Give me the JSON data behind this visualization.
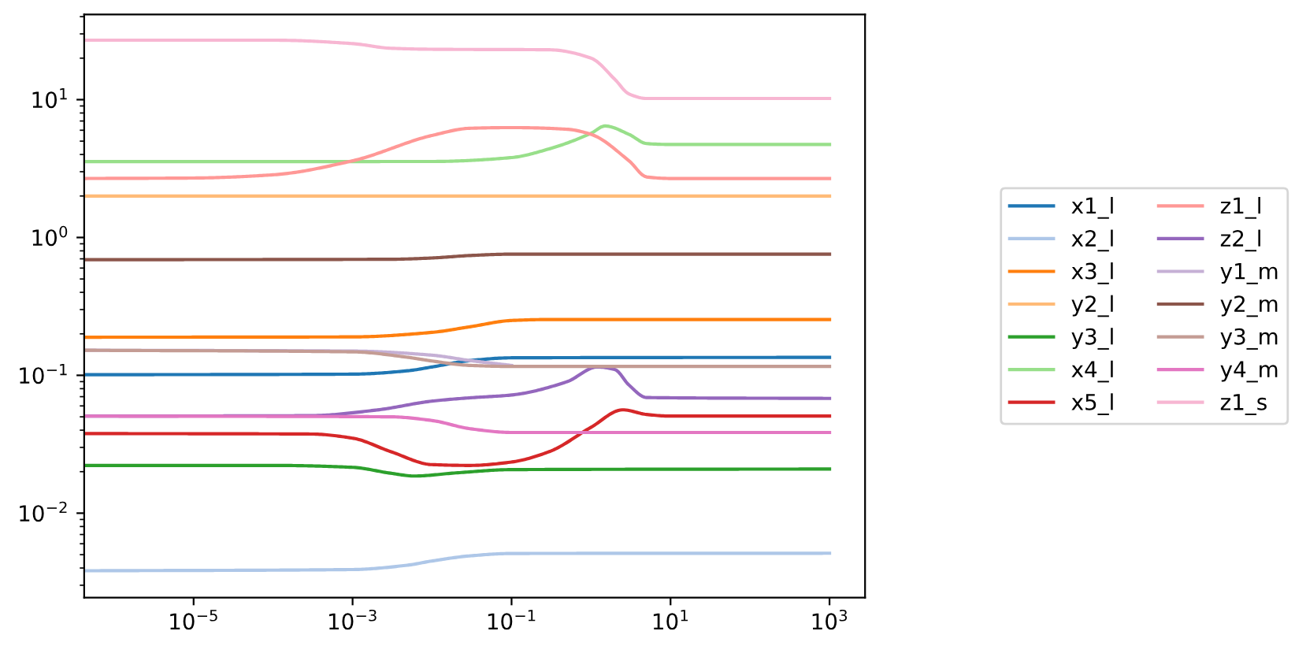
{
  "chart_data": {
    "type": "line",
    "log": "xy",
    "grid": false,
    "legend": "right",
    "marker": "none",
    "line_style": "solid",
    "xlim": [
      4.2e-07,
      2800
    ],
    "ylim": [
      0.00244,
      41.5
    ],
    "xticks": [
      {
        "value": 1e-05,
        "label": "10$^{−5}$"
      },
      {
        "value": 0.001,
        "label": "10$^{−3}$"
      },
      {
        "value": 0.1,
        "label": "10$^{−1}$"
      },
      {
        "value": 10,
        "label": "10$^{1}$"
      },
      {
        "value": 1000,
        "label": "10$^{3}$"
      }
    ],
    "yticks": [
      {
        "value": 0.01,
        "label": "10$^{−2}$"
      },
      {
        "value": 0.1,
        "label": "10$^{−1}$"
      },
      {
        "value": 1,
        "label": "10$^{0}$"
      },
      {
        "value": 10,
        "label": "10$^{1}$"
      }
    ],
    "series": [
      {
        "name": "x1_l",
        "color": "#1f77b4",
        "x": [
          4.2e-07,
          0.001,
          0.005,
          0.01,
          0.03,
          0.1,
          1000
        ],
        "values": [
          0.101,
          0.102,
          0.108,
          0.115,
          0.128,
          0.134,
          0.135
        ]
      },
      {
        "name": "x2_l",
        "color": "#aec7e8",
        "x": [
          4.2e-07,
          0.001,
          0.005,
          0.01,
          0.03,
          0.1,
          1000
        ],
        "values": [
          0.00382,
          0.0039,
          0.0042,
          0.0045,
          0.0049,
          0.0051,
          0.00512
        ]
      },
      {
        "name": "x3_l",
        "color": "#ff7f0e",
        "x": [
          4.2e-07,
          0.001,
          0.01,
          0.03,
          0.1,
          0.3,
          1000
        ],
        "values": [
          0.189,
          0.19,
          0.205,
          0.225,
          0.25,
          0.254,
          0.254
        ]
      },
      {
        "name": "y2_l",
        "color": "#ffbb78",
        "x": [
          4.2e-07,
          1000
        ],
        "values": [
          2.0,
          2.0
        ]
      },
      {
        "name": "y3_l",
        "color": "#2ca02c",
        "x": [
          4.2e-07,
          0.0001,
          0.001,
          0.003,
          0.006,
          0.02,
          0.1,
          1000
        ],
        "values": [
          0.0222,
          0.0222,
          0.0215,
          0.0195,
          0.0186,
          0.0196,
          0.0207,
          0.0209
        ]
      },
      {
        "name": "x4_l",
        "color": "#98df8a",
        "x": [
          4.2e-07,
          0.01,
          0.1,
          0.3,
          1,
          1.5,
          3,
          5,
          10,
          1000
        ],
        "values": [
          3.55,
          3.56,
          3.8,
          4.4,
          5.7,
          6.44,
          5.6,
          4.8,
          4.73,
          4.73
        ]
      },
      {
        "name": "x5_l",
        "color": "#d62728",
        "x": [
          4.2e-07,
          0.0003,
          0.001,
          0.003,
          0.01,
          0.03,
          0.1,
          0.3,
          1,
          2.5,
          5,
          10,
          1000
        ],
        "values": [
          0.0378,
          0.0375,
          0.035,
          0.028,
          0.0225,
          0.0222,
          0.0235,
          0.028,
          0.042,
          0.0562,
          0.052,
          0.0506,
          0.0506
        ]
      },
      {
        "name": "z1_l",
        "color": "#ff9896",
        "x": [
          4.2e-07,
          1e-05,
          0.0001,
          0.001,
          0.01,
          0.03,
          0.1,
          0.5,
          1,
          3,
          5,
          10,
          1000
        ],
        "values": [
          2.68,
          2.7,
          2.85,
          3.6,
          5.5,
          6.2,
          6.27,
          6.1,
          5.6,
          3.6,
          2.75,
          2.68,
          2.68
        ]
      },
      {
        "name": "z2_l",
        "color": "#9467bd",
        "x": [
          4.2e-07,
          0.0003,
          0.002,
          0.01,
          0.03,
          0.1,
          0.5,
          1.2,
          2,
          3,
          5,
          1000
        ],
        "values": [
          0.0506,
          0.051,
          0.056,
          0.065,
          0.0687,
          0.072,
          0.09,
          0.115,
          0.11,
          0.085,
          0.069,
          0.068
        ]
      },
      {
        "name": "y1_m",
        "color": "#c5b0d5",
        "x": [
          4.2e-07,
          0.001,
          0.01,
          0.03,
          0.1
        ],
        "values": [
          0.152,
          0.15,
          0.14,
          0.128,
          0.118
        ]
      },
      {
        "name": "y2_m",
        "color": "#8c564b",
        "x": [
          4.2e-07,
          0.003,
          0.01,
          0.03,
          0.1,
          1000
        ],
        "values": [
          0.69,
          0.695,
          0.71,
          0.74,
          0.757,
          0.757
        ]
      },
      {
        "name": "y3_m",
        "color": "#c49c94",
        "x": [
          4.2e-07,
          0.001,
          0.005,
          0.01,
          0.03,
          0.1,
          1000
        ],
        "values": [
          0.152,
          0.148,
          0.135,
          0.127,
          0.118,
          0.116,
          0.116
        ]
      },
      {
        "name": "y4_m",
        "color": "#e377c2",
        "x": [
          4.2e-07,
          0.003,
          0.01,
          0.03,
          0.1,
          1000
        ],
        "values": [
          0.0506,
          0.05,
          0.047,
          0.041,
          0.0385,
          0.0385
        ]
      },
      {
        "name": "z1_s",
        "color": "#f7b6d2",
        "x": [
          4.2e-07,
          0.0001,
          0.001,
          0.003,
          0.01,
          0.3,
          1,
          2,
          3,
          5,
          1000
        ],
        "values": [
          27,
          27,
          25.5,
          23.6,
          23.2,
          23,
          20,
          14,
          11,
          10.2,
          10.2
        ]
      }
    ]
  }
}
